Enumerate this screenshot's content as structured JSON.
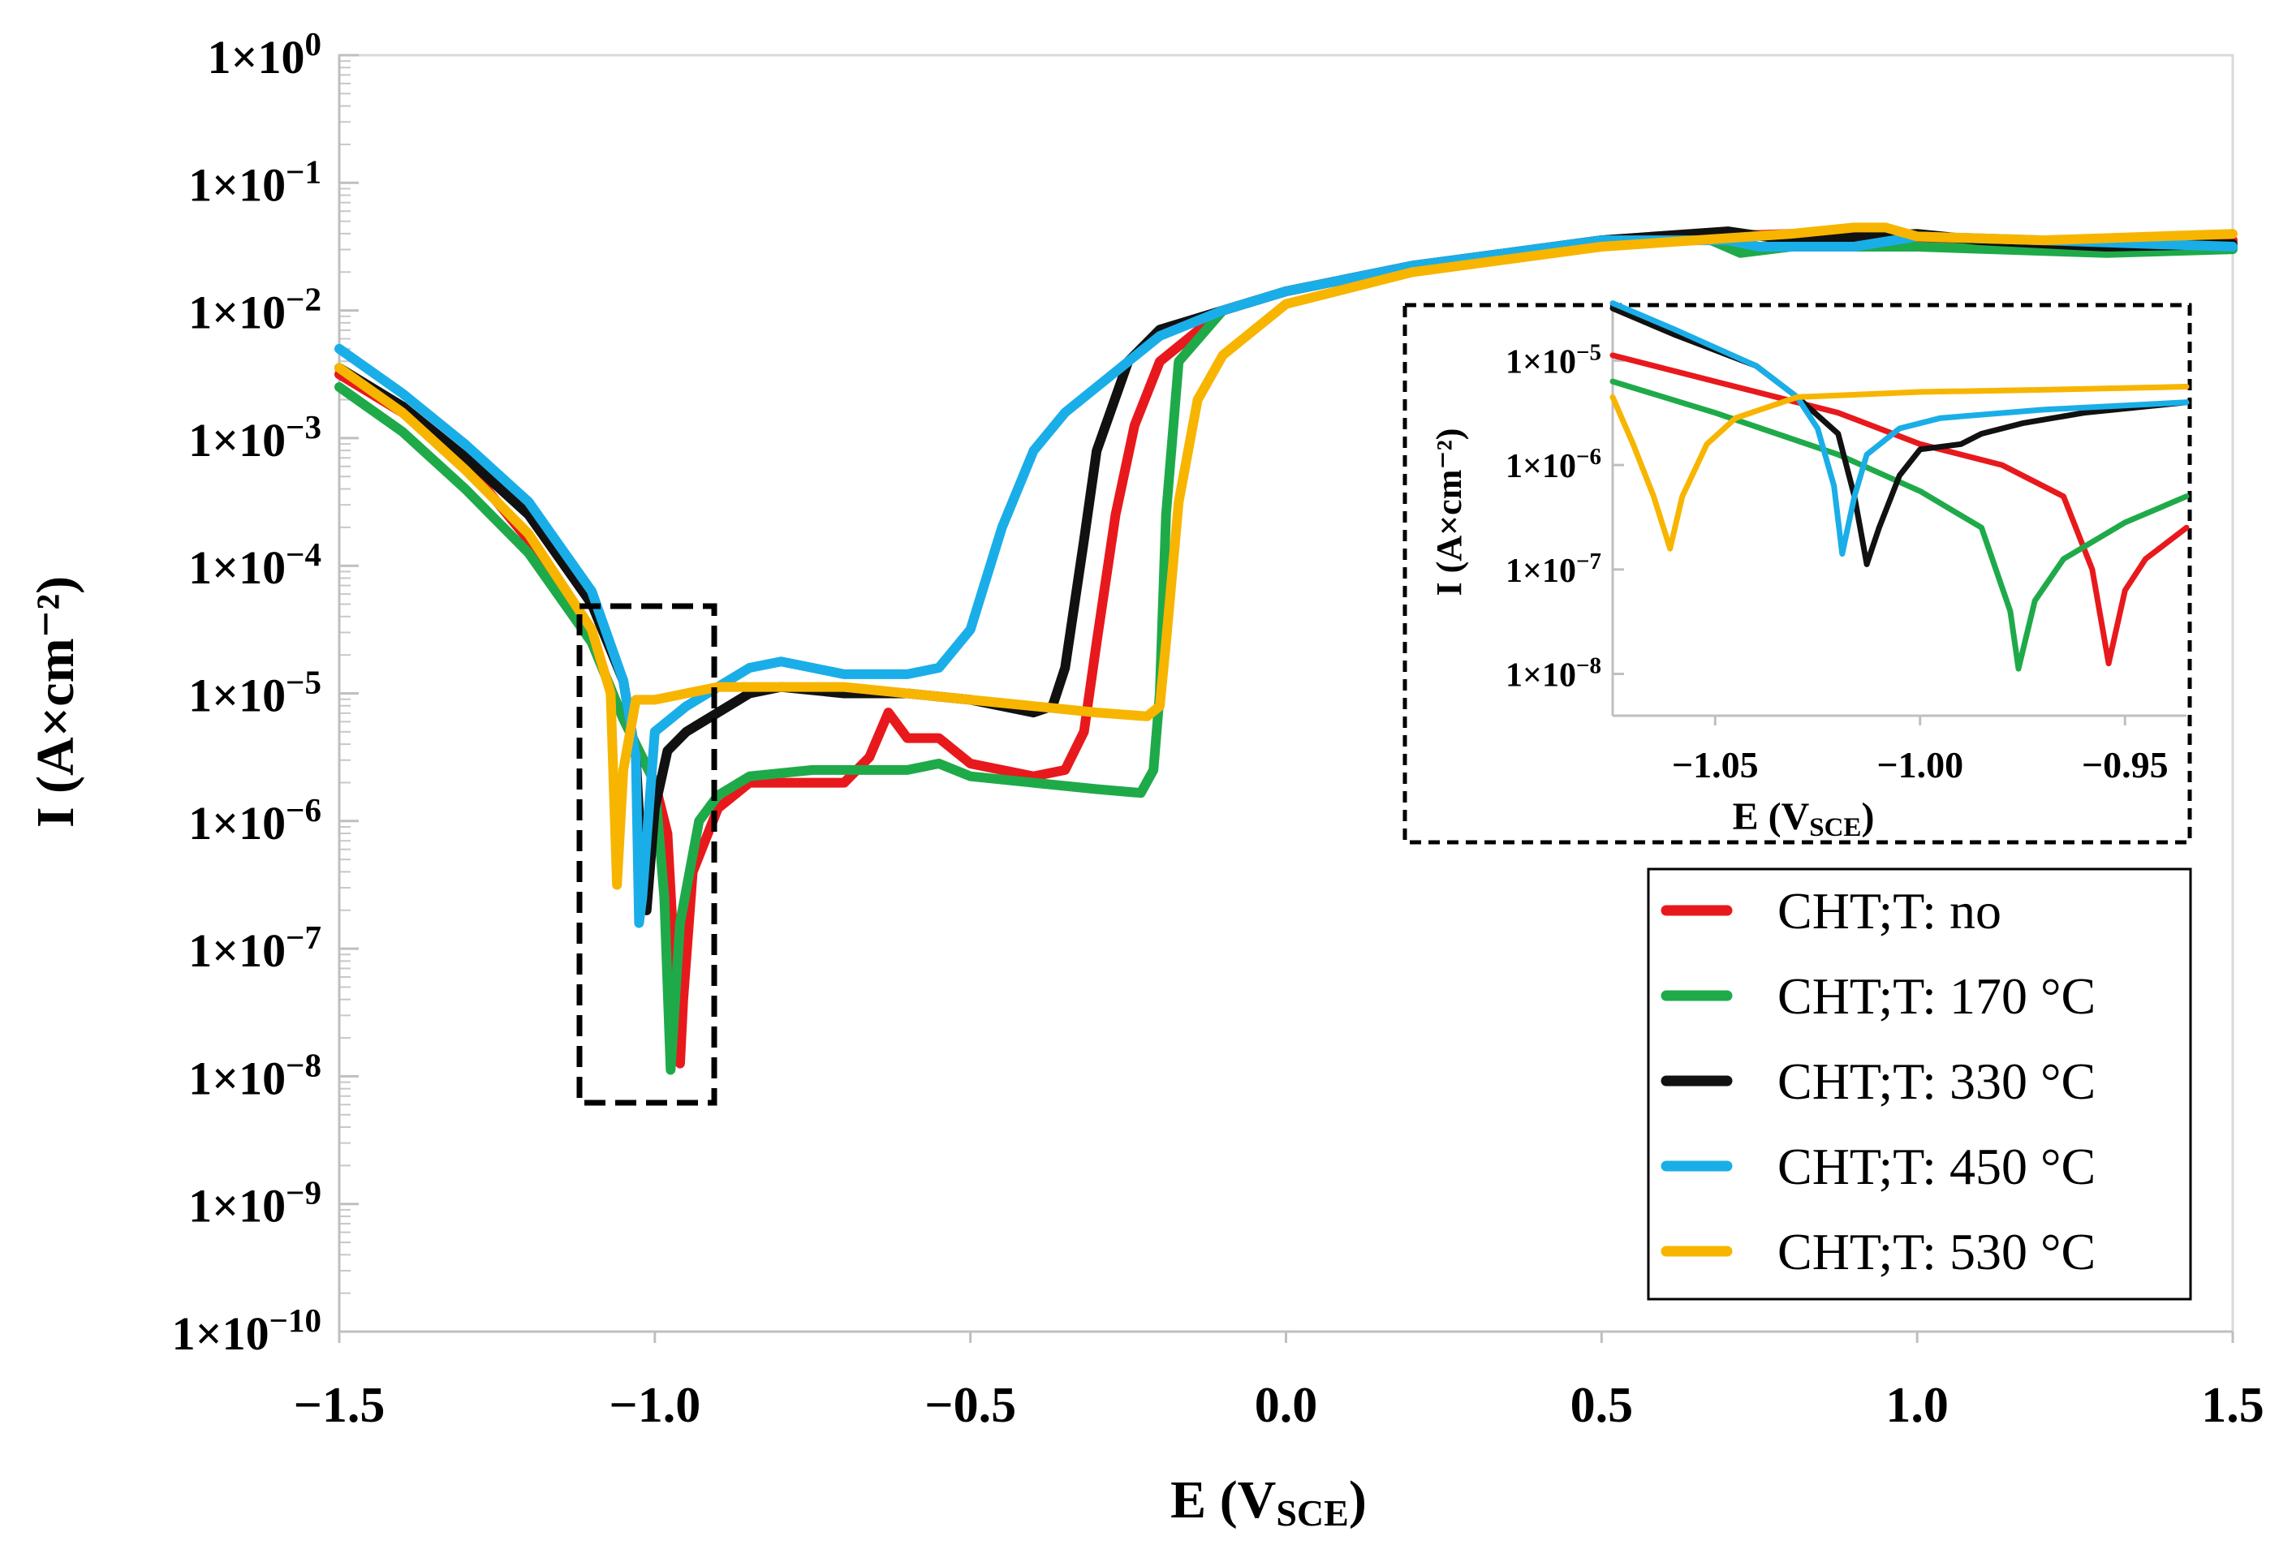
{
  "chart_data": {
    "type": "line",
    "title": "",
    "xlabel": {
      "main": "E (V",
      "sub": "SCE",
      "close": ")"
    },
    "ylabel": "I (A×cm⁻²)",
    "xlim": [
      -1.5,
      1.5
    ],
    "ylim_log10": [
      -10,
      0
    ],
    "x_ticks": [
      {
        "v": -1.5,
        "label": "−1.5"
      },
      {
        "v": -1.0,
        "label": "−1.0"
      },
      {
        "v": -0.5,
        "label": "−0.5"
      },
      {
        "v": 0.0,
        "label": "0.0"
      },
      {
        "v": 0.5,
        "label": "0.5"
      },
      {
        "v": 1.0,
        "label": "1.0"
      },
      {
        "v": 1.5,
        "label": "1.5"
      }
    ],
    "y_ticks": [
      {
        "exp": 0,
        "base": "1×10",
        "sup": "0"
      },
      {
        "exp": -1,
        "base": "1×10",
        "sup": "−1"
      },
      {
        "exp": -2,
        "base": "1×10",
        "sup": "−2"
      },
      {
        "exp": -3,
        "base": "1×10",
        "sup": "−3"
      },
      {
        "exp": -4,
        "base": "1×10",
        "sup": "−4"
      },
      {
        "exp": -5,
        "base": "1×10",
        "sup": "−5"
      },
      {
        "exp": -6,
        "base": "1×10",
        "sup": "−6"
      },
      {
        "exp": -7,
        "base": "1×10",
        "sup": "−7"
      },
      {
        "exp": -8,
        "base": "1×10",
        "sup": "−8"
      },
      {
        "exp": -9,
        "base": "1×10",
        "sup": "−9"
      },
      {
        "exp": -10,
        "base": "1×10",
        "sup": "−10"
      }
    ],
    "legend_position": "bottom-right",
    "series": [
      {
        "name": "CHT;T: no",
        "color": "#e8191c",
        "points": [
          [
            -1.5,
            -2.5
          ],
          [
            -1.4,
            -2.8
          ],
          [
            -1.3,
            -3.2
          ],
          [
            -1.2,
            -3.8
          ],
          [
            -1.1,
            -4.6
          ],
          [
            -1.05,
            -5.2
          ],
          [
            -1.0,
            -5.7
          ],
          [
            -0.98,
            -6.1
          ],
          [
            -0.96,
            -7.9
          ],
          [
            -0.955,
            -7.4
          ],
          [
            -0.94,
            -6.4
          ],
          [
            -0.9,
            -5.9
          ],
          [
            -0.85,
            -5.7
          ],
          [
            -0.8,
            -5.7
          ],
          [
            -0.7,
            -5.7
          ],
          [
            -0.66,
            -5.5
          ],
          [
            -0.63,
            -5.15
          ],
          [
            -0.6,
            -5.35
          ],
          [
            -0.55,
            -5.35
          ],
          [
            -0.5,
            -5.55
          ],
          [
            -0.4,
            -5.65
          ],
          [
            -0.35,
            -5.6
          ],
          [
            -0.32,
            -5.3
          ],
          [
            -0.3,
            -4.6
          ],
          [
            -0.27,
            -3.6
          ],
          [
            -0.24,
            -2.9
          ],
          [
            -0.2,
            -2.4
          ],
          [
            -0.1,
            -2.0
          ],
          [
            0.0,
            -1.85
          ],
          [
            0.2,
            -1.65
          ],
          [
            0.5,
            -1.45
          ],
          [
            0.8,
            -1.4
          ],
          [
            0.95,
            -1.38
          ],
          [
            1.0,
            -1.45
          ],
          [
            1.2,
            -1.48
          ],
          [
            1.5,
            -1.45
          ]
        ]
      },
      {
        "name": "CHT;T: 170 °C",
        "color": "#1faa4a",
        "points": [
          [
            -1.5,
            -2.6
          ],
          [
            -1.4,
            -2.95
          ],
          [
            -1.3,
            -3.4
          ],
          [
            -1.2,
            -3.9
          ],
          [
            -1.1,
            -4.6
          ],
          [
            -1.05,
            -5.2
          ],
          [
            -1.0,
            -5.7
          ],
          [
            -0.985,
            -6.6
          ],
          [
            -0.975,
            -7.95
          ],
          [
            -0.96,
            -6.8
          ],
          [
            -0.93,
            -6.0
          ],
          [
            -0.9,
            -5.8
          ],
          [
            -0.85,
            -5.65
          ],
          [
            -0.75,
            -5.6
          ],
          [
            -0.6,
            -5.6
          ],
          [
            -0.55,
            -5.55
          ],
          [
            -0.5,
            -5.65
          ],
          [
            -0.4,
            -5.7
          ],
          [
            -0.3,
            -5.75
          ],
          [
            -0.23,
            -5.78
          ],
          [
            -0.21,
            -5.6
          ],
          [
            -0.2,
            -5.0
          ],
          [
            -0.19,
            -3.6
          ],
          [
            -0.17,
            -2.4
          ],
          [
            -0.1,
            -2.0
          ],
          [
            0.0,
            -1.85
          ],
          [
            0.2,
            -1.65
          ],
          [
            0.5,
            -1.45
          ],
          [
            0.65,
            -1.4
          ],
          [
            0.72,
            -1.55
          ],
          [
            0.8,
            -1.5
          ],
          [
            1.0,
            -1.5
          ],
          [
            1.3,
            -1.55
          ],
          [
            1.5,
            -1.52
          ]
        ]
      },
      {
        "name": "CHT;T: 330 °C",
        "color": "#111111",
        "points": [
          [
            -1.5,
            -2.45
          ],
          [
            -1.4,
            -2.75
          ],
          [
            -1.3,
            -3.15
          ],
          [
            -1.2,
            -3.6
          ],
          [
            -1.1,
            -4.3
          ],
          [
            -1.05,
            -4.9
          ],
          [
            -1.03,
            -5.5
          ],
          [
            -1.02,
            -6.4
          ],
          [
            -1.013,
            -6.7
          ],
          [
            -1.0,
            -5.9
          ],
          [
            -0.98,
            -5.45
          ],
          [
            -0.95,
            -5.3
          ],
          [
            -0.9,
            -5.15
          ],
          [
            -0.85,
            -5.0
          ],
          [
            -0.8,
            -4.95
          ],
          [
            -0.7,
            -5.0
          ],
          [
            -0.6,
            -5.0
          ],
          [
            -0.5,
            -5.05
          ],
          [
            -0.45,
            -5.1
          ],
          [
            -0.4,
            -5.15
          ],
          [
            -0.37,
            -5.1
          ],
          [
            -0.35,
            -4.8
          ],
          [
            -0.32,
            -3.8
          ],
          [
            -0.3,
            -3.1
          ],
          [
            -0.25,
            -2.4
          ],
          [
            -0.2,
            -2.15
          ],
          [
            -0.1,
            -2.0
          ],
          [
            0.0,
            -1.85
          ],
          [
            0.2,
            -1.65
          ],
          [
            0.5,
            -1.45
          ],
          [
            0.7,
            -1.38
          ],
          [
            0.8,
            -1.45
          ],
          [
            1.0,
            -1.4
          ],
          [
            1.1,
            -1.45
          ],
          [
            1.3,
            -1.5
          ],
          [
            1.5,
            -1.48
          ]
        ]
      },
      {
        "name": "CHT;T: 450 °C",
        "color": "#1aaee8",
        "points": [
          [
            -1.5,
            -2.3
          ],
          [
            -1.4,
            -2.65
          ],
          [
            -1.3,
            -3.05
          ],
          [
            -1.2,
            -3.5
          ],
          [
            -1.1,
            -4.2
          ],
          [
            -1.05,
            -4.9
          ],
          [
            -1.03,
            -5.5
          ],
          [
            -1.025,
            -6.8
          ],
          [
            -1.02,
            -6.6
          ],
          [
            -1.0,
            -5.3
          ],
          [
            -0.95,
            -5.1
          ],
          [
            -0.9,
            -4.95
          ],
          [
            -0.85,
            -4.8
          ],
          [
            -0.8,
            -4.75
          ],
          [
            -0.75,
            -4.8
          ],
          [
            -0.7,
            -4.85
          ],
          [
            -0.65,
            -4.85
          ],
          [
            -0.6,
            -4.85
          ],
          [
            -0.55,
            -4.8
          ],
          [
            -0.5,
            -4.5
          ],
          [
            -0.45,
            -3.7
          ],
          [
            -0.4,
            -3.1
          ],
          [
            -0.35,
            -2.8
          ],
          [
            -0.3,
            -2.6
          ],
          [
            -0.2,
            -2.2
          ],
          [
            -0.1,
            -2.0
          ],
          [
            0.0,
            -1.85
          ],
          [
            0.2,
            -1.65
          ],
          [
            0.5,
            -1.45
          ],
          [
            0.7,
            -1.45
          ],
          [
            0.75,
            -1.5
          ],
          [
            0.9,
            -1.5
          ],
          [
            1.0,
            -1.42
          ],
          [
            1.2,
            -1.45
          ],
          [
            1.5,
            -1.5
          ]
        ]
      },
      {
        "name": "CHT;T: 530 °C",
        "color": "#f7b500",
        "points": [
          [
            -1.5,
            -2.45
          ],
          [
            -1.4,
            -2.8
          ],
          [
            -1.3,
            -3.25
          ],
          [
            -1.2,
            -3.75
          ],
          [
            -1.1,
            -4.5
          ],
          [
            -1.07,
            -5.0
          ],
          [
            -1.06,
            -6.5
          ],
          [
            -1.05,
            -5.6
          ],
          [
            -1.03,
            -5.05
          ],
          [
            -1.0,
            -5.05
          ],
          [
            -0.95,
            -5.0
          ],
          [
            -0.9,
            -4.95
          ],
          [
            -0.8,
            -4.95
          ],
          [
            -0.7,
            -4.95
          ],
          [
            -0.6,
            -5.0
          ],
          [
            -0.5,
            -5.05
          ],
          [
            -0.4,
            -5.1
          ],
          [
            -0.3,
            -5.15
          ],
          [
            -0.22,
            -5.18
          ],
          [
            -0.2,
            -5.1
          ],
          [
            -0.19,
            -4.6
          ],
          [
            -0.17,
            -3.5
          ],
          [
            -0.14,
            -2.7
          ],
          [
            -0.1,
            -2.35
          ],
          [
            0.0,
            -1.95
          ],
          [
            0.2,
            -1.7
          ],
          [
            0.5,
            -1.5
          ],
          [
            0.8,
            -1.4
          ],
          [
            0.9,
            -1.35
          ],
          [
            0.95,
            -1.35
          ],
          [
            1.0,
            -1.42
          ],
          [
            1.2,
            -1.45
          ],
          [
            1.5,
            -1.4
          ]
        ]
      }
    ],
    "inset": {
      "xlabel": {
        "main": "E (V",
        "sub": "SCE",
        "close": ")"
      },
      "ylabel": "I (A×cm⁻²)",
      "xlim": [
        -1.075,
        -0.935
      ],
      "ylim_log10": [
        -8.4,
        -4.5
      ],
      "x_ticks": [
        {
          "v": -1.05,
          "label": "−1.05"
        },
        {
          "v": -1.0,
          "label": "−1.00"
        },
        {
          "v": -0.95,
          "label": "−0.95"
        }
      ],
      "y_ticks": [
        {
          "exp": -5,
          "base": "1×10",
          "sup": "−5"
        },
        {
          "exp": -6,
          "base": "1×10",
          "sup": "−6"
        },
        {
          "exp": -7,
          "base": "1×10",
          "sup": "−7"
        },
        {
          "exp": -8,
          "base": "1×10",
          "sup": "−8"
        }
      ],
      "series": [
        {
          "name": "CHT;T: no",
          "color": "#e8191c",
          "points": [
            [
              -1.075,
              -4.95
            ],
            [
              -1.05,
              -5.2
            ],
            [
              -1.02,
              -5.5
            ],
            [
              -1.0,
              -5.8
            ],
            [
              -0.98,
              -6.0
            ],
            [
              -0.965,
              -6.3
            ],
            [
              -0.958,
              -7.0
            ],
            [
              -0.954,
              -7.9
            ],
            [
              -0.95,
              -7.2
            ],
            [
              -0.945,
              -6.9
            ],
            [
              -0.935,
              -6.6
            ]
          ]
        },
        {
          "name": "CHT;T: 170 °C",
          "color": "#1faa4a",
          "points": [
            [
              -1.075,
              -5.2
            ],
            [
              -1.05,
              -5.5
            ],
            [
              -1.02,
              -5.9
            ],
            [
              -1.0,
              -6.25
            ],
            [
              -0.985,
              -6.6
            ],
            [
              -0.978,
              -7.4
            ],
            [
              -0.976,
              -7.95
            ],
            [
              -0.972,
              -7.3
            ],
            [
              -0.965,
              -6.9
            ],
            [
              -0.95,
              -6.55
            ],
            [
              -0.935,
              -6.3
            ]
          ]
        },
        {
          "name": "CHT;T: 330 °C",
          "color": "#111111",
          "points": [
            [
              -1.075,
              -4.5
            ],
            [
              -1.06,
              -4.75
            ],
            [
              -1.04,
              -5.05
            ],
            [
              -1.03,
              -5.35
            ],
            [
              -1.02,
              -5.7
            ],
            [
              -1.016,
              -6.3
            ],
            [
              -1.013,
              -6.95
            ],
            [
              -1.01,
              -6.6
            ],
            [
              -1.005,
              -6.1
            ],
            [
              -1.0,
              -5.85
            ],
            [
              -0.99,
              -5.8
            ],
            [
              -0.985,
              -5.7
            ],
            [
              -0.975,
              -5.6
            ],
            [
              -0.96,
              -5.5
            ],
            [
              -0.935,
              -5.4
            ]
          ]
        },
        {
          "name": "CHT;T: 450 °C",
          "color": "#1aaee8",
          "points": [
            [
              -1.075,
              -4.45
            ],
            [
              -1.06,
              -4.7
            ],
            [
              -1.04,
              -5.05
            ],
            [
              -1.03,
              -5.35
            ],
            [
              -1.025,
              -5.65
            ],
            [
              -1.021,
              -6.2
            ],
            [
              -1.019,
              -6.85
            ],
            [
              -1.016,
              -6.3
            ],
            [
              -1.013,
              -5.9
            ],
            [
              -1.005,
              -5.65
            ],
            [
              -0.995,
              -5.55
            ],
            [
              -0.97,
              -5.47
            ],
            [
              -0.935,
              -5.4
            ]
          ]
        },
        {
          "name": "CHT;T: 530 °C",
          "color": "#f7b500",
          "points": [
            [
              -1.075,
              -5.35
            ],
            [
              -1.07,
              -5.8
            ],
            [
              -1.065,
              -6.3
            ],
            [
              -1.061,
              -6.8
            ],
            [
              -1.058,
              -6.3
            ],
            [
              -1.052,
              -5.8
            ],
            [
              -1.045,
              -5.55
            ],
            [
              -1.03,
              -5.35
            ],
            [
              -1.0,
              -5.3
            ],
            [
              -0.97,
              -5.28
            ],
            [
              -0.935,
              -5.25
            ]
          ]
        }
      ]
    }
  }
}
